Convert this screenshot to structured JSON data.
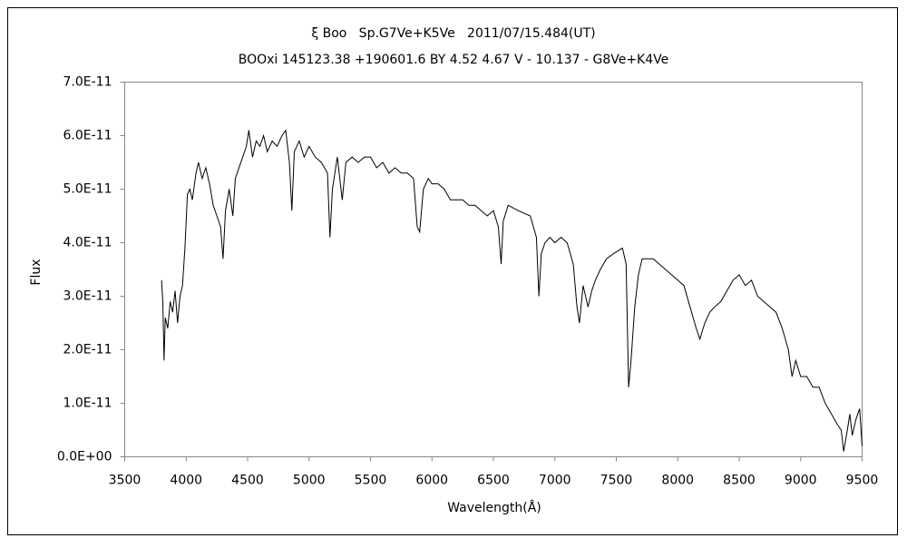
{
  "chart_data": {
    "type": "line",
    "title": "ξ Boo   Sp.G7Ve+K5Ve   2011/07/15.484(UT)",
    "subtitle": "BOOxi 145123.38 +190601.6 BY 4.52 4.67 V - 10.137 - G8Ve+K4Ve",
    "x_label": "Wavelength(Å)",
    "y_label": "Flux",
    "color": "#000000",
    "xlim": [
      3500,
      9500
    ],
    "xticks": [
      3500,
      4000,
      4500,
      5000,
      5500,
      6000,
      6500,
      7000,
      7500,
      8000,
      8500,
      9000,
      9500
    ],
    "ylim": [
      0,
      7e-11
    ],
    "yticks": [
      {
        "value": 0,
        "label": "0.0E+00"
      },
      {
        "value": 1e-11,
        "label": "1.0E-11"
      },
      {
        "value": 2e-11,
        "label": "2.0E-11"
      },
      {
        "value": 3e-11,
        "label": "3.0E-11"
      },
      {
        "value": 4e-11,
        "label": "4.0E-11"
      },
      {
        "value": 5e-11,
        "label": "5.0E-11"
      },
      {
        "value": 6e-11,
        "label": "6.0E-11"
      },
      {
        "value": 7e-11,
        "label": "7.0E-11"
      }
    ],
    "x": [
      3800,
      3810,
      3820,
      3830,
      3850,
      3870,
      3890,
      3910,
      3930,
      3950,
      3970,
      3990,
      4010,
      4030,
      4050,
      4080,
      4100,
      4130,
      4160,
      4190,
      4220,
      4250,
      4280,
      4300,
      4320,
      4350,
      4380,
      4400,
      4430,
      4460,
      4490,
      4510,
      4540,
      4570,
      4600,
      4630,
      4660,
      4700,
      4740,
      4780,
      4810,
      4840,
      4860,
      4880,
      4920,
      4960,
      5000,
      5050,
      5100,
      5150,
      5170,
      5190,
      5230,
      5270,
      5300,
      5350,
      5400,
      5450,
      5500,
      5550,
      5600,
      5650,
      5700,
      5750,
      5800,
      5850,
      5880,
      5900,
      5930,
      5970,
      6000,
      6050,
      6100,
      6150,
      6200,
      6250,
      6300,
      6350,
      6400,
      6450,
      6500,
      6540,
      6563,
      6580,
      6620,
      6700,
      6800,
      6850,
      6870,
      6890,
      6920,
      6960,
      7000,
      7050,
      7100,
      7150,
      7180,
      7200,
      7230,
      7270,
      7300,
      7330,
      7370,
      7420,
      7480,
      7550,
      7580,
      7600,
      7620,
      7650,
      7680,
      7710,
      7750,
      7800,
      7850,
      7900,
      7950,
      8000,
      8050,
      8100,
      8150,
      8180,
      8220,
      8260,
      8300,
      8350,
      8400,
      8450,
      8500,
      8550,
      8600,
      8650,
      8700,
      8750,
      8800,
      8850,
      8900,
      8930,
      8960,
      9000,
      9050,
      9100,
      9150,
      9200,
      9250,
      9300,
      9330,
      9350,
      9380,
      9400,
      9420,
      9450,
      9480,
      9500
    ],
    "values": [
      3.3e-11,
      2.9e-11,
      1.8e-11,
      2.6e-11,
      2.4e-11,
      2.9e-11,
      2.7e-11,
      3.1e-11,
      2.5e-11,
      3e-11,
      3.2e-11,
      3.9e-11,
      4.9e-11,
      5e-11,
      4.8e-11,
      5.3e-11,
      5.5e-11,
      5.2e-11,
      5.4e-11,
      5.1e-11,
      4.7e-11,
      4.5e-11,
      4.3e-11,
      3.7e-11,
      4.6e-11,
      5e-11,
      4.5e-11,
      5.2e-11,
      5.4e-11,
      5.6e-11,
      5.8e-11,
      6.1e-11,
      5.6e-11,
      5.9e-11,
      5.8e-11,
      6e-11,
      5.7e-11,
      5.9e-11,
      5.8e-11,
      6e-11,
      6.1e-11,
      5.5e-11,
      4.6e-11,
      5.7e-11,
      5.9e-11,
      5.6e-11,
      5.8e-11,
      5.6e-11,
      5.5e-11,
      5.3e-11,
      4.1e-11,
      5e-11,
      5.6e-11,
      4.8e-11,
      5.5e-11,
      5.6e-11,
      5.5e-11,
      5.6e-11,
      5.6e-11,
      5.4e-11,
      5.5e-11,
      5.3e-11,
      5.4e-11,
      5.3e-11,
      5.3e-11,
      5.2e-11,
      4.3e-11,
      4.2e-11,
      5e-11,
      5.2e-11,
      5.1e-11,
      5.1e-11,
      5e-11,
      4.8e-11,
      4.8e-11,
      4.8e-11,
      4.7e-11,
      4.7e-11,
      4.6e-11,
      4.5e-11,
      4.6e-11,
      4.3e-11,
      3.6e-11,
      4.4e-11,
      4.7e-11,
      4.6e-11,
      4.5e-11,
      4.1e-11,
      3e-11,
      3.8e-11,
      4e-11,
      4.1e-11,
      4e-11,
      4.1e-11,
      4e-11,
      3.6e-11,
      2.8e-11,
      2.5e-11,
      3.2e-11,
      2.8e-11,
      3.1e-11,
      3.3e-11,
      3.5e-11,
      3.7e-11,
      3.8e-11,
      3.9e-11,
      3.6e-11,
      1.3e-11,
      1.8e-11,
      2.8e-11,
      3.4e-11,
      3.7e-11,
      3.7e-11,
      3.7e-11,
      3.6e-11,
      3.5e-11,
      3.4e-11,
      3.3e-11,
      3.2e-11,
      2.8e-11,
      2.4e-11,
      2.2e-11,
      2.5e-11,
      2.7e-11,
      2.8e-11,
      2.9e-11,
      3.1e-11,
      3.3e-11,
      3.4e-11,
      3.2e-11,
      3.3e-11,
      3e-11,
      2.9e-11,
      2.8e-11,
      2.7e-11,
      2.4e-11,
      2e-11,
      1.5e-11,
      1.8e-11,
      1.5e-11,
      1.5e-11,
      1.3e-11,
      1.3e-11,
      1e-11,
      8e-12,
      6e-12,
      5e-12,
      1e-12,
      5e-12,
      8e-12,
      4e-12,
      7e-12,
      9e-12,
      2e-12
    ]
  }
}
